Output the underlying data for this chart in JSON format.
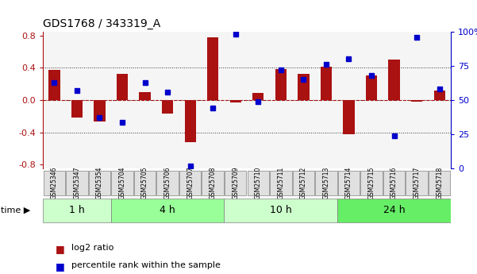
{
  "title": "GDS1768 / 343319_A",
  "samples": [
    "GSM25346",
    "GSM25347",
    "GSM25354",
    "GSM25704",
    "GSM25705",
    "GSM25706",
    "GSM25707",
    "GSM25708",
    "GSM25709",
    "GSM25710",
    "GSM25711",
    "GSM25712",
    "GSM25713",
    "GSM25714",
    "GSM25715",
    "GSM25716",
    "GSM25717",
    "GSM25718"
  ],
  "log2_ratio": [
    0.37,
    -0.22,
    -0.27,
    0.32,
    0.1,
    -0.17,
    -0.52,
    0.78,
    -0.03,
    0.09,
    0.38,
    0.32,
    0.41,
    -0.42,
    0.3,
    0.5,
    -0.02,
    0.12
  ],
  "percentile": [
    63,
    57,
    37,
    34,
    63,
    56,
    2,
    44,
    98,
    49,
    72,
    65,
    76,
    80,
    68,
    24,
    96,
    58
  ],
  "groups": [
    {
      "label": "1 h",
      "start": 0,
      "end": 3,
      "color": "#ccffcc"
    },
    {
      "label": "4 h",
      "start": 3,
      "end": 8,
      "color": "#99ff99"
    },
    {
      "label": "10 h",
      "start": 8,
      "end": 13,
      "color": "#ccffcc"
    },
    {
      "label": "24 h",
      "start": 13,
      "end": 18,
      "color": "#66ee66"
    }
  ],
  "bar_color": "#aa1111",
  "dot_color": "#0000cc",
  "bar_width": 0.5,
  "ylim": [
    -0.85,
    0.85
  ],
  "yticks_left": [
    -0.8,
    -0.4,
    0.0,
    0.4,
    0.8
  ],
  "yticks_right": [
    0,
    25,
    50,
    75,
    100
  ],
  "grid_color": "#333333",
  "bg_color": "#ffffff",
  "plot_bg": "#f5f5f5"
}
